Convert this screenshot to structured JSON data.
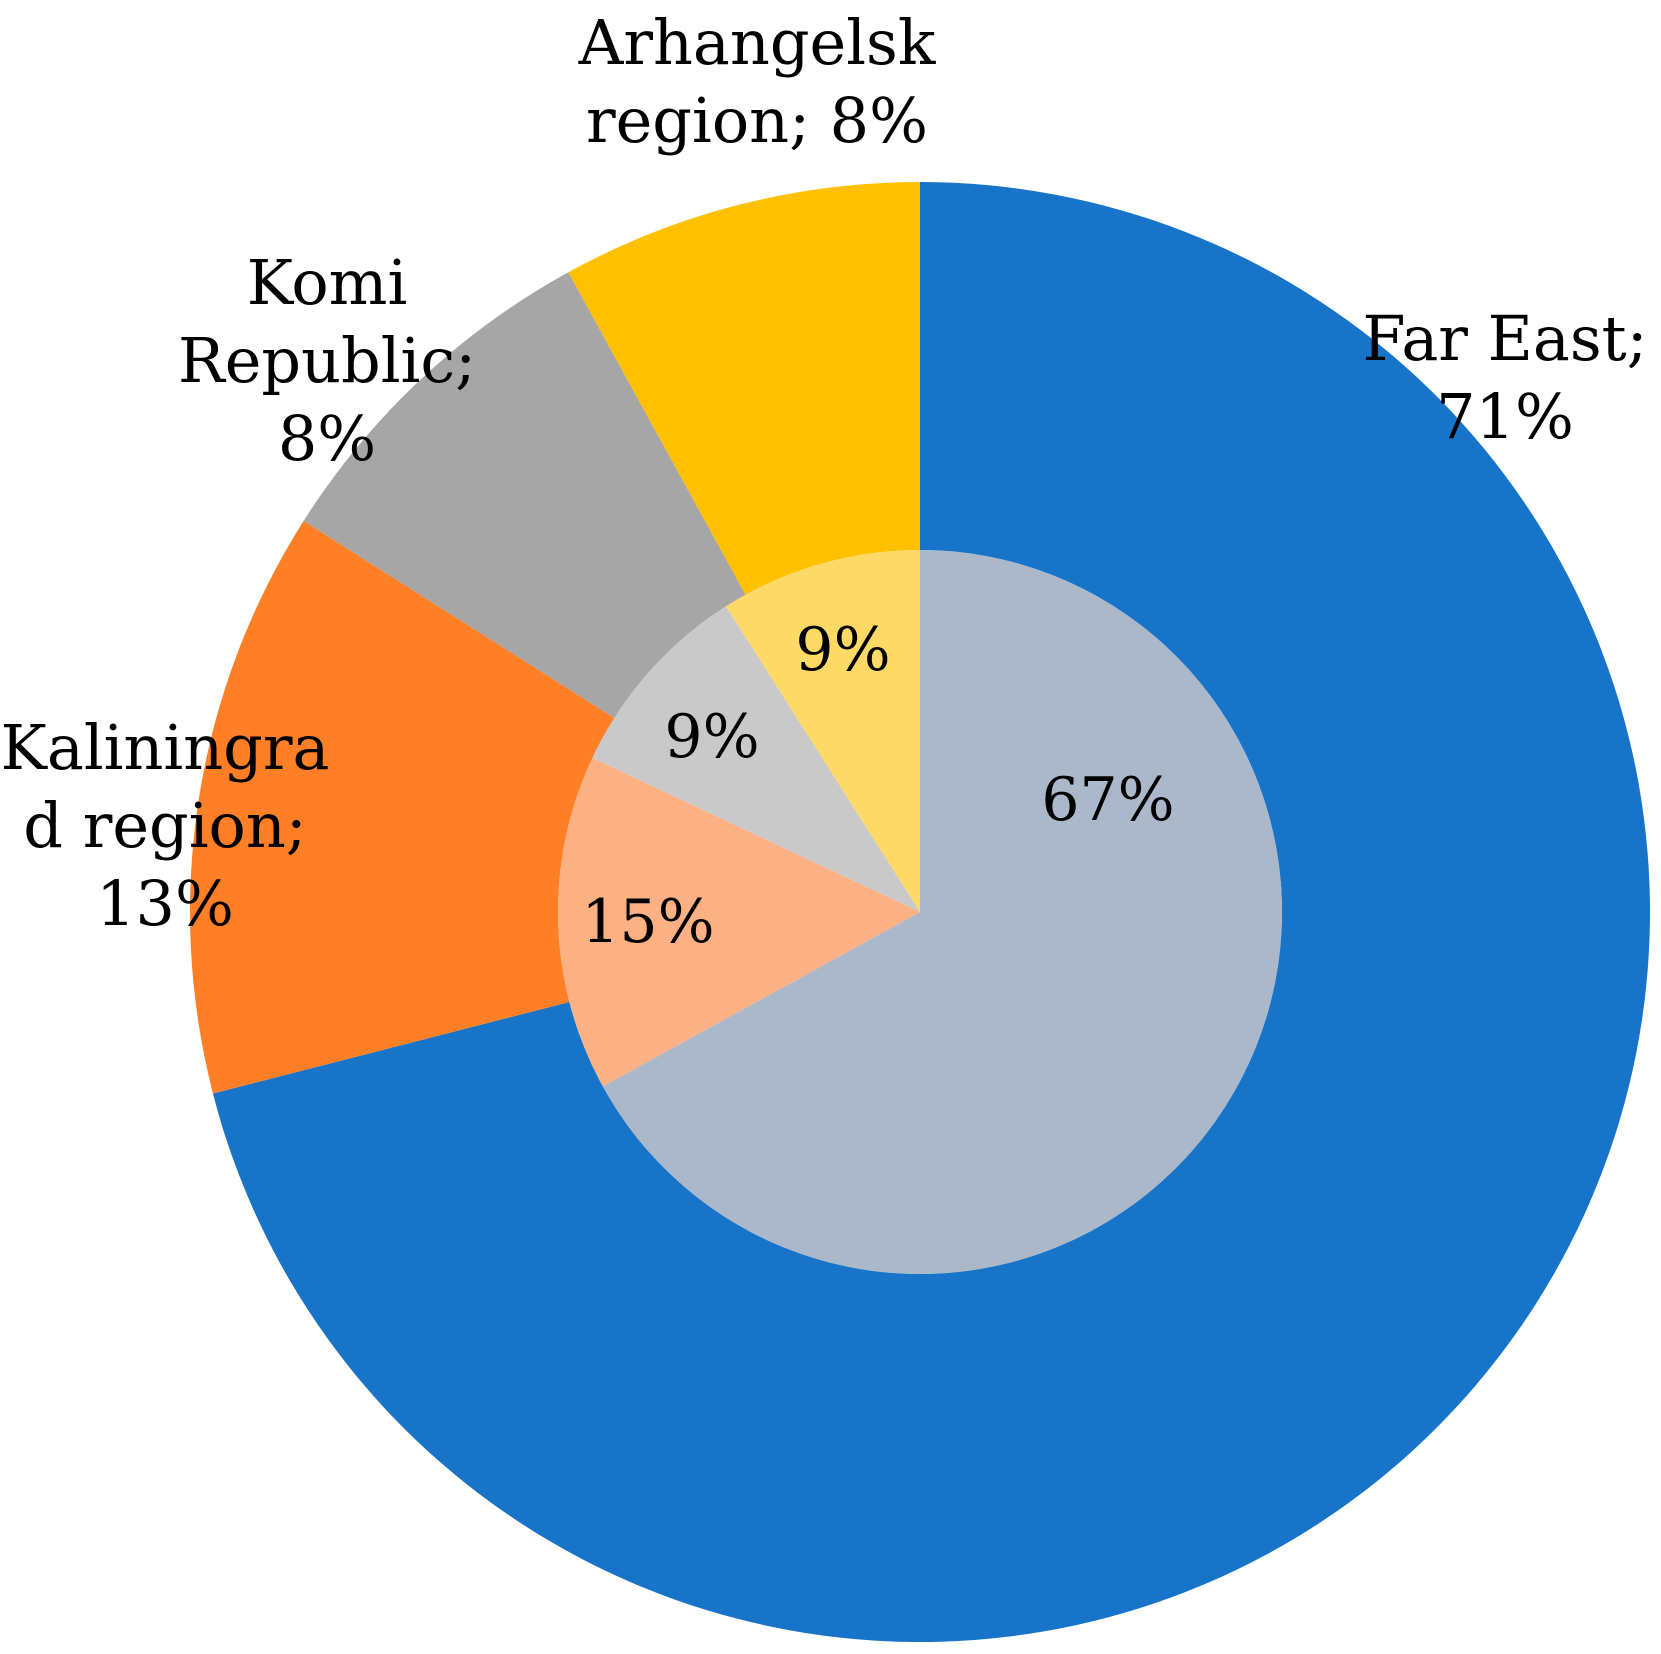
{
  "chart_data": {
    "type": "pie",
    "subtype": "nested-donut",
    "title": "",
    "legend": "none",
    "rings": [
      {
        "ring": "outer",
        "series": [
          {
            "name": "Far East",
            "value": 71,
            "label_lines": [
              "Far East;",
              "71%"
            ],
            "color": "#1874C8"
          },
          {
            "name": "Kaliningrad region",
            "value": 13,
            "label_lines": [
              "Kaliningra",
              "d region;",
              "13%"
            ],
            "color": "#FF7F27"
          },
          {
            "name": "Komi Republic",
            "value": 8,
            "label_lines": [
              "Komi",
              "Republic;",
              "8%"
            ],
            "color": "#A6A6A6"
          },
          {
            "name": "Arhangelsk region",
            "value": 8,
            "label_lines": [
              "Arhangelsk",
              "region; 8%"
            ],
            "color": "#FFC000"
          }
        ]
      },
      {
        "ring": "inner",
        "series": [
          {
            "value": 67,
            "label": "67%",
            "color": "#AAB8CA"
          },
          {
            "value": 15,
            "label": "15%",
            "color": "#FCB184"
          },
          {
            "value": 9,
            "label": "9%",
            "color": "#C9C9C9"
          },
          {
            "value": 9,
            "label": "9%",
            "color": "#FFD966"
          }
        ]
      }
    ]
  }
}
